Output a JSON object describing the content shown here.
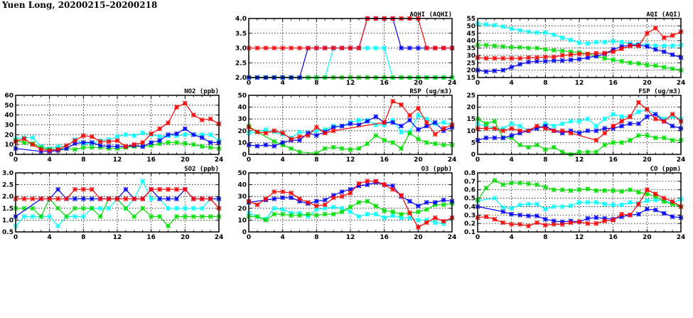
{
  "title": "Yuen Long, 20200215–20200218",
  "colors": {
    "blue": "#0000ff",
    "red": "#ff0000",
    "green": "#00dd00",
    "cyan": "#00ffff"
  },
  "chart_data": [
    {
      "id": "no2",
      "type": "line",
      "title": "NO2 (ppb)",
      "xlim": [
        0,
        24
      ],
      "xticks": [
        0,
        4,
        8,
        12,
        16,
        20,
        24
      ],
      "ylim": [
        0,
        60
      ],
      "yticks": [
        0,
        10,
        20,
        30,
        40,
        50,
        60
      ],
      "ydec": 0,
      "series": [
        {
          "name": "cyan",
          "values": [
            16,
            17,
            17,
            8,
            6,
            8,
            8,
            15,
            11,
            11,
            14,
            15,
            18,
            20,
            19,
            22,
            20,
            18,
            19,
            19,
            20,
            20,
            20,
            20,
            14
          ]
        },
        {
          "name": "green",
          "values": [
            14,
            12,
            11,
            7,
            5,
            5,
            6,
            5,
            7,
            7,
            7,
            6,
            6,
            7,
            8,
            8,
            9,
            11,
            12,
            12,
            11,
            10,
            8,
            7,
            6
          ]
        },
        {
          "name": "blue",
          "values": [
            6,
            null,
            null,
            3,
            3,
            4,
            6,
            11,
            12,
            12,
            9,
            8,
            8,
            8,
            9,
            8,
            12,
            14,
            20,
            21,
            26,
            20,
            17,
            12,
            12
          ]
        },
        {
          "name": "red",
          "values": [
            13,
            16,
            10,
            5,
            4,
            5,
            9,
            14,
            19,
            18,
            13,
            13,
            14,
            8,
            10,
            12,
            21,
            26,
            32,
            48,
            52,
            40,
            35,
            36,
            31
          ]
        }
      ]
    },
    {
      "id": "so2",
      "type": "line",
      "title": "SO2 (ppb)",
      "xlim": [
        0,
        24
      ],
      "xticks": [
        0,
        4,
        8,
        12,
        16,
        20,
        24
      ],
      "ylim": [
        0.5,
        3.0
      ],
      "yticks": [
        0.5,
        1.0,
        1.5,
        2.0,
        2.5,
        3.0
      ],
      "ydec": 1,
      "series": [
        {
          "name": "cyan",
          "values": [
            0.75,
            1.15,
            1.15,
            1.15,
            1.15,
            0.75,
            1.15,
            1.15,
            1.15,
            1.5,
            1.5,
            1.5,
            1.9,
            1.5,
            1.9,
            2.65,
            1.9,
            1.9,
            1.5,
            1.5,
            1.5,
            1.5,
            1.5,
            1.9,
            1.9
          ]
        },
        {
          "name": "green",
          "values": [
            1.5,
            1.5,
            1.5,
            1.15,
            1.9,
            1.5,
            1.15,
            1.5,
            1.5,
            1.5,
            1.15,
            1.9,
            1.9,
            1.5,
            1.15,
            1.5,
            1.15,
            1.15,
            0.75,
            1.15,
            1.15,
            1.15,
            1.15,
            1.15,
            1.15
          ]
        },
        {
          "name": "blue",
          "values": [
            1.15,
            null,
            null,
            1.9,
            1.9,
            2.3,
            1.9,
            1.9,
            1.9,
            1.9,
            1.9,
            1.9,
            1.9,
            2.3,
            1.9,
            1.9,
            2.3,
            1.9,
            1.9,
            1.9,
            2.3,
            1.9,
            1.9,
            1.9,
            1.9
          ]
        },
        {
          "name": "red",
          "values": [
            1.9,
            1.9,
            1.9,
            1.9,
            1.9,
            1.9,
            1.9,
            2.3,
            2.3,
            2.3,
            1.9,
            1.9,
            1.9,
            1.9,
            1.9,
            1.9,
            2.3,
            2.3,
            2.3,
            2.3,
            2.3,
            1.9,
            1.9,
            1.9,
            1.5
          ]
        }
      ]
    },
    {
      "id": "aqhi",
      "type": "line",
      "title": "AQHI (AQHI)",
      "xlim": [
        0,
        24
      ],
      "xticks": [
        0,
        4,
        8,
        12,
        16,
        20,
        24
      ],
      "ylim": [
        2.0,
        4.0
      ],
      "yticks": [
        2.0,
        2.5,
        3.0,
        3.5,
        4.0
      ],
      "ydec": 1,
      "series": [
        {
          "name": "cyan",
          "values": [
            2,
            2,
            2,
            2,
            2,
            2,
            2,
            2,
            2,
            2,
            3,
            3,
            3,
            3,
            3,
            3,
            3,
            2,
            2,
            2,
            2,
            2,
            2,
            2,
            2
          ]
        },
        {
          "name": "green",
          "values": [
            2,
            2,
            2,
            2,
            2,
            2,
            2,
            2,
            2,
            2,
            2,
            2,
            2,
            2,
            2,
            2,
            2,
            2,
            2,
            2,
            2,
            2,
            2,
            2,
            2
          ]
        },
        {
          "name": "blue",
          "values": [
            2,
            2,
            2,
            2,
            2,
            2,
            2,
            3,
            3,
            3,
            3,
            3,
            3,
            3,
            4,
            4,
            4,
            4,
            3,
            3,
            3,
            3,
            3,
            3,
            3
          ]
        },
        {
          "name": "red",
          "values": [
            3,
            3,
            3,
            3,
            3,
            3,
            3,
            3,
            3,
            3,
            3,
            3,
            3,
            3,
            4,
            4,
            4,
            4,
            4,
            4,
            4,
            3,
            3,
            3,
            3
          ]
        }
      ]
    },
    {
      "id": "rsp",
      "type": "line",
      "title": "RSP (ug/m3)",
      "xlim": [
        0,
        24
      ],
      "xticks": [
        0,
        4,
        8,
        12,
        16,
        20,
        24
      ],
      "ylim": [
        0,
        50
      ],
      "yticks": [
        0,
        10,
        20,
        30,
        40,
        50
      ],
      "ydec": 0,
      "series": [
        {
          "name": "cyan",
          "values": [
            18,
            19,
            21,
            19,
            17,
            14,
            19,
            18,
            20,
            21,
            24,
            24,
            27,
            29,
            29,
            25,
            25,
            29,
            19,
            19,
            33,
            30,
            26,
            27,
            25
          ]
        },
        {
          "name": "green",
          "values": [
            24,
            19,
            null,
            11,
            8,
            5,
            2,
            null,
            1,
            5,
            6,
            5,
            4,
            5,
            9,
            16,
            12,
            10,
            5,
            18,
            13,
            10,
            9,
            8,
            8
          ]
        },
        {
          "name": "blue",
          "values": [
            8,
            7,
            8,
            7,
            10,
            12,
            12,
            18,
            16,
            19,
            23,
            24,
            26,
            25,
            28,
            32,
            27,
            27,
            24,
            29,
            21,
            24,
            27,
            20,
            23
          ]
        },
        {
          "name": "red",
          "values": [
            23,
            19,
            18,
            20,
            18,
            13,
            15,
            16,
            23,
            18,
            20,
            null,
            null,
            null,
            null,
            null,
            27,
            45,
            42,
            33,
            39,
            27,
            17,
            22,
            25
          ]
        }
      ]
    },
    {
      "id": "o3",
      "type": "line",
      "title": "O3 (ppb)",
      "xlim": [
        0,
        24
      ],
      "xticks": [
        0,
        4,
        8,
        12,
        16,
        20,
        24
      ],
      "ylim": [
        0,
        50
      ],
      "yticks": [
        0,
        10,
        20,
        30,
        40,
        50
      ],
      "ydec": 0,
      "series": [
        {
          "name": "cyan",
          "values": [
            16,
            13,
            11,
            20,
            19,
            16,
            16,
            13,
            19,
            20,
            21,
            20,
            17,
            13,
            15,
            15,
            12,
            14,
            12,
            12,
            10,
            10,
            8,
            7,
            12
          ]
        },
        {
          "name": "green",
          "values": [
            13,
            13,
            10,
            15,
            15,
            14,
            14,
            15,
            14,
            15,
            15,
            17,
            21,
            25,
            26,
            22,
            18,
            17,
            15,
            16,
            17,
            19,
            23,
            23,
            24
          ]
        },
        {
          "name": "blue",
          "values": [
            25,
            null,
            27,
            28,
            29,
            29,
            26,
            24,
            26,
            27,
            31,
            34,
            36,
            39,
            40,
            42,
            40,
            39,
            30,
            26,
            22,
            25,
            25,
            27,
            26
          ]
        },
        {
          "name": "red",
          "values": [
            26,
            23,
            28,
            34,
            34,
            33,
            28,
            25,
            22,
            23,
            29,
            30,
            33,
            41,
            43,
            43,
            40,
            36,
            31,
            16,
            4,
            8,
            12,
            9,
            12
          ]
        }
      ]
    },
    {
      "id": "aqi",
      "type": "line",
      "title": "AQI (AQI)",
      "xlim": [
        0,
        24
      ],
      "xticks": [
        0,
        4,
        8,
        12,
        16,
        20,
        24
      ],
      "ylim": [
        15,
        55
      ],
      "yticks": [
        15,
        20,
        25,
        30,
        35,
        40,
        45,
        50,
        55
      ],
      "ydec": 0,
      "series": [
        {
          "name": "cyan",
          "values": [
            51.5,
            51,
            50.5,
            49.5,
            48,
            47,
            46,
            45.5,
            45.5,
            44,
            42,
            40.5,
            38.5,
            38,
            39,
            39,
            39.5,
            39,
            38,
            37.5,
            37,
            36.5,
            36.5,
            36.5,
            37
          ]
        },
        {
          "name": "green",
          "values": [
            37,
            37,
            36.5,
            36,
            35.5,
            35.5,
            35,
            35,
            34,
            33.5,
            33,
            32.5,
            32,
            31,
            29.5,
            28,
            27,
            26,
            25,
            24.5,
            23.5,
            23,
            22,
            21,
            20
          ]
        },
        {
          "name": "blue",
          "values": [
            20,
            19,
            19.5,
            20,
            22,
            24,
            25.5,
            26,
            26,
            26.5,
            26.5,
            27,
            27.5,
            28.5,
            29.5,
            31,
            34,
            36,
            37,
            37,
            36,
            34,
            32.5,
            30.5,
            28.5
          ]
        },
        {
          "name": "red",
          "values": [
            28.5,
            28,
            28,
            28,
            28,
            28,
            28.5,
            28.5,
            29,
            29,
            30,
            30.5,
            31,
            31,
            31.5,
            31.5,
            32.5,
            34.5,
            36.5,
            36.5,
            45,
            48.5,
            42,
            43.5,
            46
          ]
        }
      ]
    },
    {
      "id": "fsp",
      "type": "line",
      "title": "FSP (ug/m3)",
      "xlim": [
        0,
        24
      ],
      "xticks": [
        0,
        4,
        8,
        12,
        16,
        20,
        24
      ],
      "ylim": [
        0,
        25
      ],
      "yticks": [
        0,
        5,
        10,
        15,
        20,
        25
      ],
      "ydec": 0,
      "series": [
        {
          "name": "cyan",
          "values": [
            13,
            12,
            11,
            11,
            13,
            12,
            10,
            11,
            13,
            12,
            13,
            14,
            14,
            15,
            12,
            15,
            17,
            16,
            16,
            18,
            19,
            null,
            15,
            16,
            15
          ]
        },
        {
          "name": "green",
          "values": [
            15,
            13,
            14,
            7,
            7,
            4,
            3,
            4,
            2,
            3,
            1,
            0,
            1,
            1,
            1,
            4,
            5,
            5,
            6,
            8,
            8,
            7,
            7,
            6,
            6
          ]
        },
        {
          "name": "blue",
          "values": [
            6,
            7,
            7,
            7,
            8,
            9,
            10,
            11,
            12,
            10,
            9,
            10,
            9,
            10,
            10,
            11,
            11,
            12,
            13,
            13,
            16,
            17,
            14,
            12,
            11
          ]
        },
        {
          "name": "red",
          "values": [
            11,
            11,
            11,
            10,
            11,
            10,
            10,
            12,
            11,
            10,
            10,
            9,
            null,
            null,
            6,
            9,
            12,
            14,
            16,
            22,
            19,
            15,
            14,
            17,
            14
          ]
        }
      ]
    },
    {
      "id": "co",
      "type": "line",
      "title": "CO (ppm)",
      "xlim": [
        0,
        24
      ],
      "xticks": [
        0,
        4,
        8,
        12,
        16,
        20,
        24
      ],
      "ylim": [
        0.1,
        0.8
      ],
      "yticks": [
        0.1,
        0.2,
        0.3,
        0.4,
        0.5,
        0.6,
        0.7,
        0.8
      ],
      "ydec": 1,
      "series": [
        {
          "name": "cyan",
          "values": [
            0.47,
            null,
            0.5,
            0.39,
            0.38,
            0.42,
            0.43,
            0.43,
            0.37,
            0.4,
            0.4,
            0.41,
            0.45,
            0.45,
            0.45,
            0.43,
            0.42,
            0.42,
            0.45,
            0.44,
            0.47,
            0.48,
            0.47,
            0.44,
            0.49
          ]
        },
        {
          "name": "green",
          "values": [
            0.48,
            0.62,
            0.71,
            0.66,
            0.68,
            0.68,
            0.67,
            0.66,
            0.63,
            0.6,
            0.6,
            0.59,
            0.6,
            0.61,
            0.59,
            0.59,
            0.59,
            0.58,
            0.6,
            0.57,
            0.55,
            0.52,
            0.46,
            0.43,
            0.4
          ]
        },
        {
          "name": "blue",
          "values": [
            0.4,
            null,
            null,
            0.34,
            0.31,
            0.3,
            0.29,
            0.29,
            0.25,
            0.23,
            0.22,
            0.23,
            0.22,
            0.26,
            0.27,
            0.26,
            0.25,
            0.28,
            0.3,
            0.31,
            0.37,
            0.36,
            0.32,
            0.28,
            0.27
          ]
        },
        {
          "name": "red",
          "values": [
            0.27,
            0.28,
            0.25,
            0.21,
            0.19,
            0.19,
            0.17,
            0.21,
            0.18,
            0.19,
            0.19,
            0.21,
            0.22,
            0.2,
            0.2,
            0.23,
            0.24,
            0.31,
            0.3,
            0.43,
            0.6,
            0.55,
            0.5,
            0.46,
            0.4
          ]
        }
      ]
    }
  ]
}
